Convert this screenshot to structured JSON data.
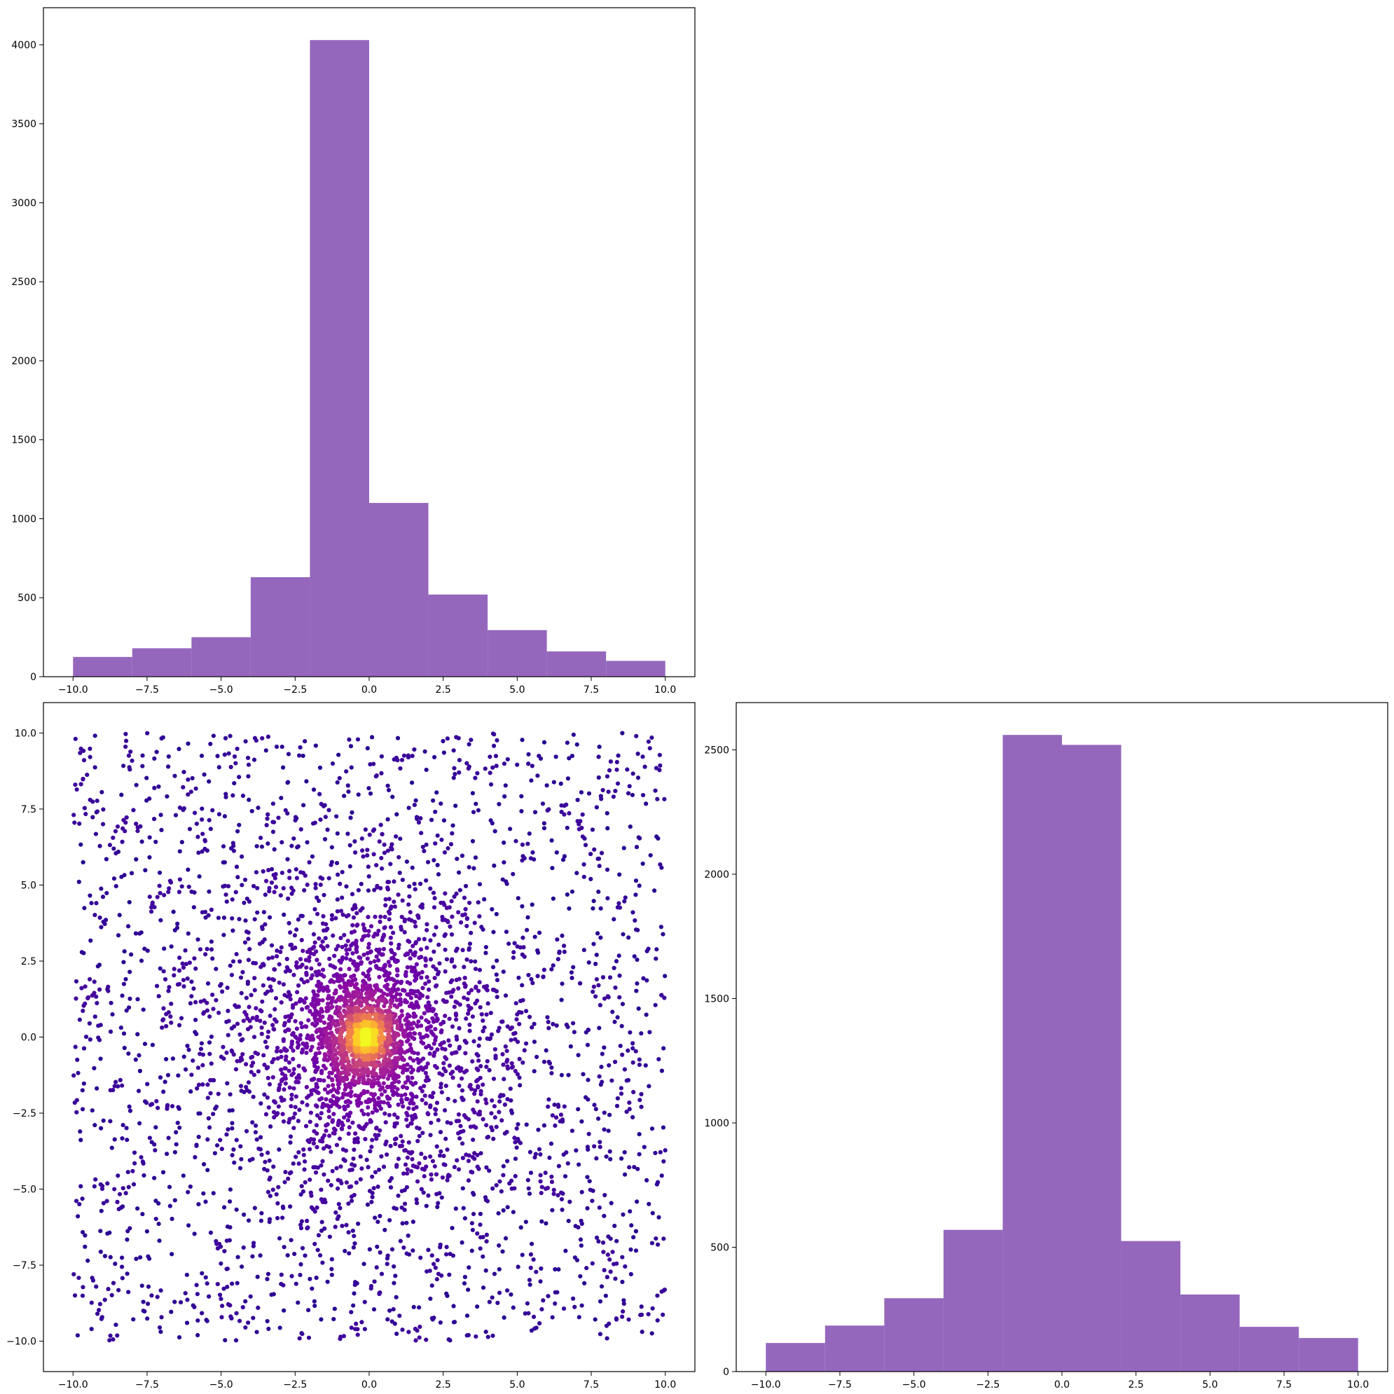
{
  "figure": {
    "background": "#ffffff",
    "layout": "corner-plot 2x2, top-right panel empty"
  },
  "chart_data": [
    {
      "type": "bar",
      "subtype": "histogram",
      "panel": "top-left",
      "title": "",
      "xlabel": "",
      "ylabel": "",
      "color": "#9467bd",
      "bin_edges": [
        -10,
        -8,
        -6,
        -4,
        -2,
        0,
        2,
        4,
        6,
        8,
        10
      ],
      "values": [
        125,
        180,
        250,
        630,
        4030,
        1100,
        520,
        295,
        160,
        100
      ],
      "xlim": [
        -11,
        11
      ],
      "ylim": [
        0,
        4235
      ],
      "xticks": [
        -10,
        -7.5,
        -5,
        -2.5,
        0,
        2.5,
        5,
        7.5,
        10
      ],
      "xtick_labels": [
        "−10.0",
        "−7.5",
        "−5.0",
        "−2.5",
        "0.0",
        "2.5",
        "5.0",
        "7.5",
        "10.0"
      ],
      "yticks": [
        0,
        500,
        1000,
        1500,
        2000,
        2500,
        3000,
        3500,
        4000
      ],
      "ytick_labels": [
        "0",
        "500",
        "1000",
        "1500",
        "2000",
        "2500",
        "3000",
        "3500",
        "4000"
      ],
      "grid": false
    },
    {
      "type": "scatter",
      "panel": "bottom-left",
      "title": "",
      "xlabel": "",
      "ylabel": "",
      "colormap": "plasma",
      "color_encoding": "local point density",
      "n_points_approx": 5000,
      "x_range": [
        -10,
        10
      ],
      "y_range": [
        -10,
        10
      ],
      "center": [
        0,
        0
      ],
      "xlim": [
        -11,
        11
      ],
      "ylim": [
        -11,
        11
      ],
      "xticks": [
        -10,
        -7.5,
        -5,
        -2.5,
        0,
        2.5,
        5,
        7.5,
        10
      ],
      "xtick_labels": [
        "−10.0",
        "−7.5",
        "−5.0",
        "−2.5",
        "0.0",
        "2.5",
        "5.0",
        "7.5",
        "10.0"
      ],
      "yticks": [
        -10,
        -7.5,
        -5,
        -2.5,
        0,
        2.5,
        5,
        7.5,
        10
      ],
      "ytick_labels": [
        "−10.0",
        "−7.5",
        "−5.0",
        "−2.5",
        "0.0",
        "2.5",
        "5.0",
        "7.5",
        "10.0"
      ],
      "grid": false
    },
    {
      "type": "bar",
      "subtype": "histogram",
      "panel": "bottom-right",
      "title": "",
      "xlabel": "",
      "ylabel": "",
      "color": "#9467bd",
      "bin_edges": [
        -10,
        -8,
        -6,
        -4,
        -2,
        0,
        2,
        4,
        6,
        8,
        10
      ],
      "values": [
        115,
        185,
        295,
        570,
        2560,
        2520,
        525,
        310,
        180,
        135
      ],
      "xlim": [
        -11,
        11
      ],
      "ylim": [
        0,
        2690
      ],
      "xticks": [
        -10,
        -7.5,
        -5,
        -2.5,
        0,
        2.5,
        5,
        7.5,
        10
      ],
      "xtick_labels": [
        "−10.0",
        "−7.5",
        "−5.0",
        "−2.5",
        "0.0",
        "2.5",
        "5.0",
        "7.5",
        "10.0"
      ],
      "yticks": [
        0,
        500,
        1000,
        1500,
        2000,
        2500
      ],
      "ytick_labels": [
        "0",
        "500",
        "1000",
        "1500",
        "2000",
        "2500"
      ],
      "grid": false
    }
  ]
}
